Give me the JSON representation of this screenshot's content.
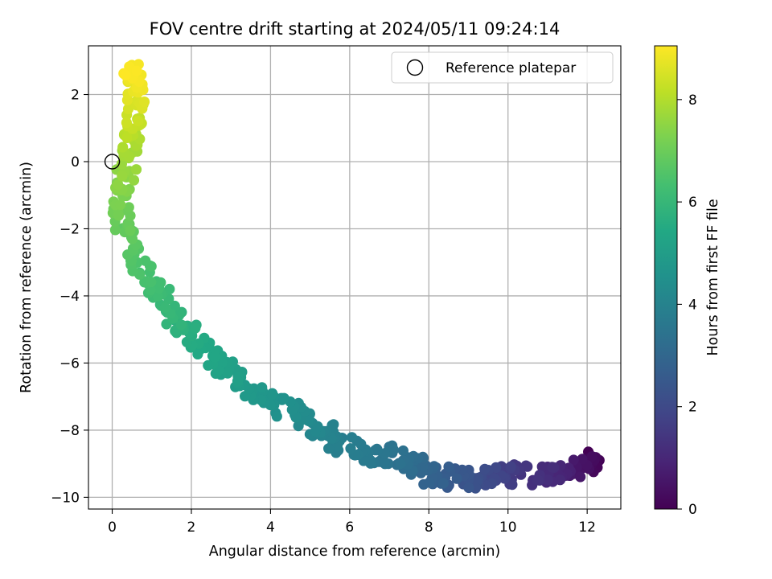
{
  "chart_data": {
    "type": "scatter",
    "title": "FOV centre drift starting at 2024/05/11 09:24:14",
    "xlabel": "Angular distance from reference (arcmin)",
    "ylabel": "Rotation from reference (arcmin)",
    "xlim": [
      -0.6,
      12.85
    ],
    "ylim": [
      -10.35,
      3.45
    ],
    "xticks": [
      0,
      2,
      4,
      6,
      8,
      10,
      12
    ],
    "yticks": [
      -10,
      -8,
      -6,
      -4,
      -2,
      0,
      2
    ],
    "grid": true,
    "legend": {
      "placement": "top-right",
      "entries": [
        {
          "label": "Reference platepar",
          "marker": "open-circle"
        }
      ]
    },
    "reference_point": {
      "x": 0,
      "y": 0
    },
    "colorbar": {
      "label": "Hours from first FF file",
      "colormap": "viridis",
      "range": [
        0,
        9.05
      ],
      "ticks": [
        0,
        2,
        4,
        6,
        8
      ]
    },
    "drift_path": [
      {
        "x": 12.25,
        "y": -8.9,
        "hours": 0.0
      },
      {
        "x": 11.9,
        "y": -9.05,
        "hours": 0.35
      },
      {
        "x": 11.4,
        "y": -9.2,
        "hours": 0.8
      },
      {
        "x": 11.0,
        "y": -9.35,
        "hours": 1.15
      },
      {
        "x": 10.2,
        "y": -9.3,
        "hours": 1.5
      },
      {
        "x": 9.6,
        "y": -9.4,
        "hours": 1.9
      },
      {
        "x": 9.0,
        "y": -9.45,
        "hours": 2.3
      },
      {
        "x": 8.5,
        "y": -9.4,
        "hours": 2.6
      },
      {
        "x": 8.0,
        "y": -9.3,
        "hours": 2.9
      },
      {
        "x": 7.5,
        "y": -9.0,
        "hours": 3.2
      },
      {
        "x": 7.0,
        "y": -8.7,
        "hours": 3.45
      },
      {
        "x": 6.4,
        "y": -8.75,
        "hours": 3.65
      },
      {
        "x": 5.8,
        "y": -8.4,
        "hours": 3.85
      },
      {
        "x": 5.3,
        "y": -7.95,
        "hours": 4.05
      },
      {
        "x": 4.8,
        "y": -7.6,
        "hours": 4.3
      },
      {
        "x": 4.2,
        "y": -7.25,
        "hours": 4.55
      },
      {
        "x": 3.6,
        "y": -6.8,
        "hours": 4.8
      },
      {
        "x": 3.0,
        "y": -6.3,
        "hours": 5.05
      },
      {
        "x": 2.5,
        "y": -5.85,
        "hours": 5.3
      },
      {
        "x": 2.0,
        "y": -5.2,
        "hours": 5.6
      },
      {
        "x": 1.5,
        "y": -4.55,
        "hours": 5.9
      },
      {
        "x": 1.1,
        "y": -3.8,
        "hours": 6.2
      },
      {
        "x": 0.7,
        "y": -3.05,
        "hours": 6.5
      },
      {
        "x": 0.35,
        "y": -2.2,
        "hours": 6.8
      },
      {
        "x": 0.2,
        "y": -1.4,
        "hours": 7.1
      },
      {
        "x": 0.3,
        "y": -0.6,
        "hours": 7.45
      },
      {
        "x": 0.45,
        "y": 0.25,
        "hours": 7.8
      },
      {
        "x": 0.55,
        "y": 1.0,
        "hours": 8.15
      },
      {
        "x": 0.6,
        "y": 1.7,
        "hours": 8.5
      },
      {
        "x": 0.6,
        "y": 2.4,
        "hours": 8.85
      },
      {
        "x": 0.45,
        "y": 2.85,
        "hours": 9.05
      }
    ],
    "scatter_spread": {
      "dx": 0.22,
      "dy": 0.3
    },
    "n_points": 480
  }
}
